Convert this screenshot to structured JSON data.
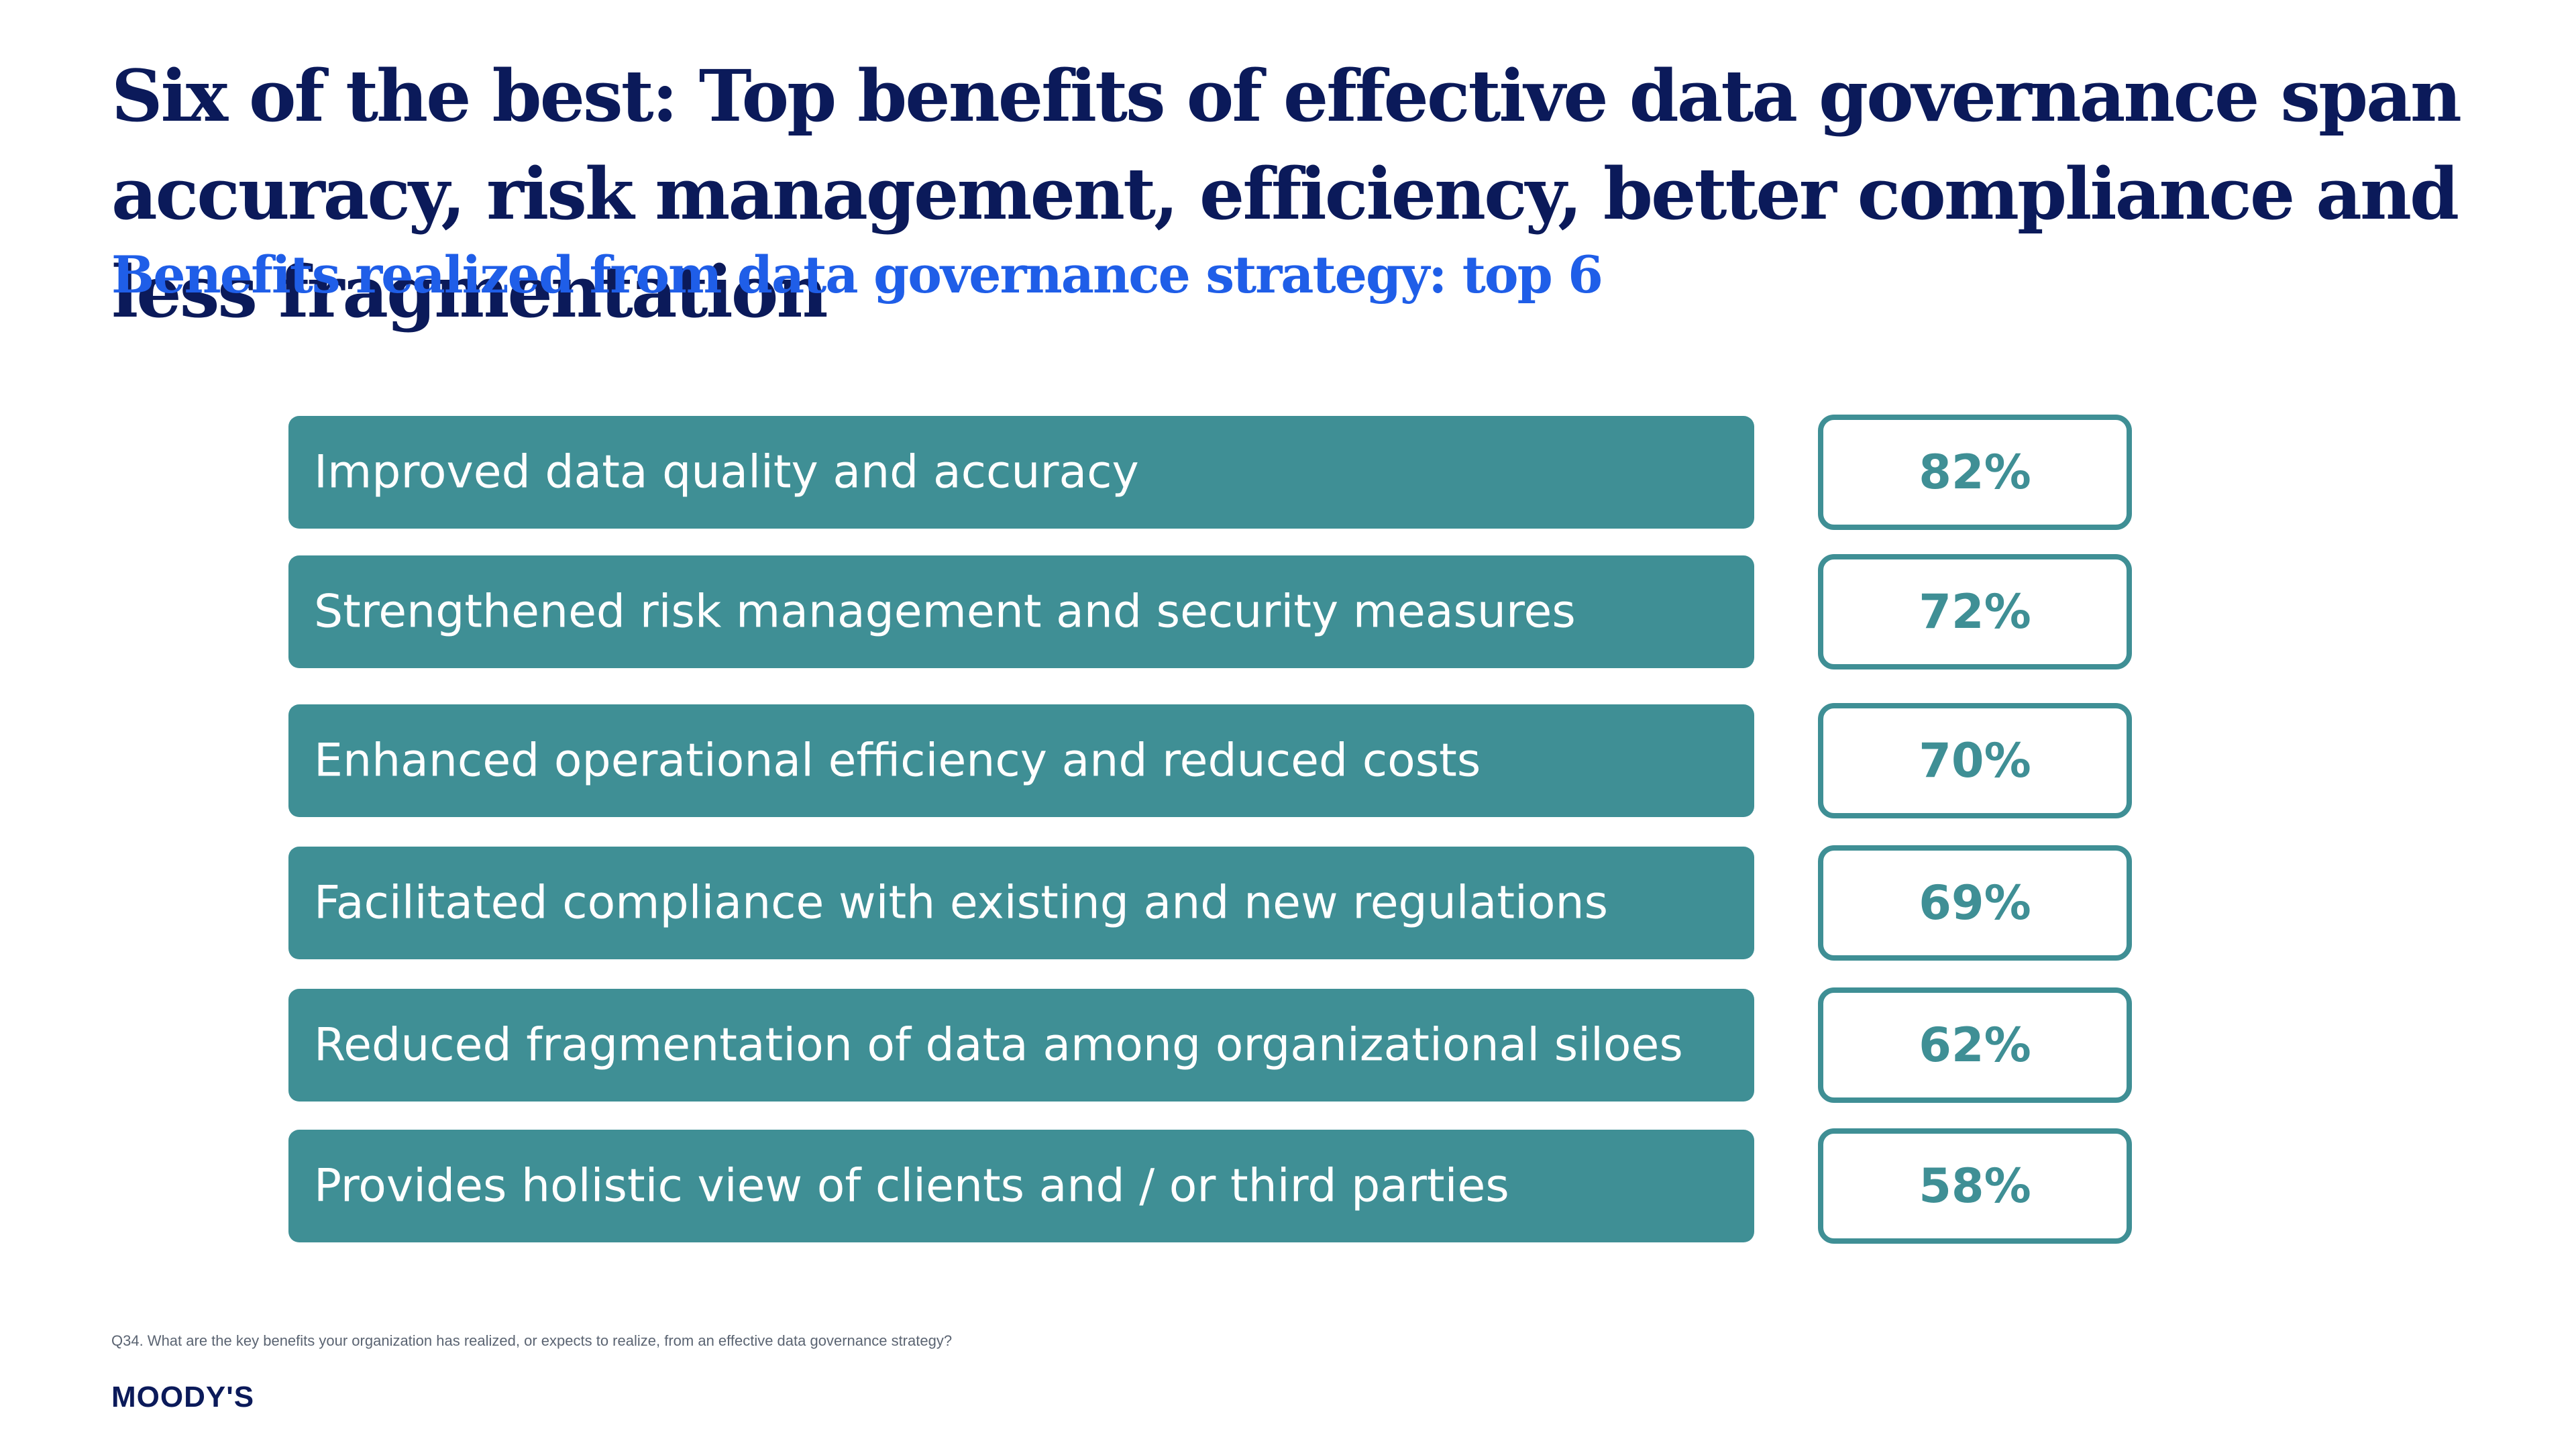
{
  "colors": {
    "title": "#0b1a5a",
    "subtitle": "#1f5ee8",
    "bar_fill": "#3f8f95",
    "bar_text": "#ffffff",
    "value_border": "#3f8f95",
    "value_text": "#3f8f95",
    "footnote": "#5b6472",
    "brand": "#0b1a5a"
  },
  "title": "Six of the best: Top benefits of effective data governance span accuracy, risk management, efficiency, better compliance and less fragmentation",
  "subtitle": "Benefits realized from data governance strategy: top 6",
  "chart_data": {
    "type": "table",
    "title": "Benefits realized from data governance strategy: top 6",
    "categories": [
      "Improved data quality and accuracy",
      "Strengthened risk management and security measures",
      "Enhanced operational efficiency and reduced costs",
      "Facilitated compliance with existing and new regulations",
      "Reduced fragmentation of data among organizational siloes",
      "Provides holistic view of clients and / or third parties"
    ],
    "values": [
      82,
      72,
      70,
      69,
      62,
      58
    ],
    "value_labels": [
      "82%",
      "72%",
      "70%",
      "69%",
      "62%",
      "58%"
    ],
    "unit": "%"
  },
  "footnote": "Q34. What are the key benefits your organization has realized, or expects to realize, from an effective data governance strategy?",
  "brand": "MOODY'S"
}
